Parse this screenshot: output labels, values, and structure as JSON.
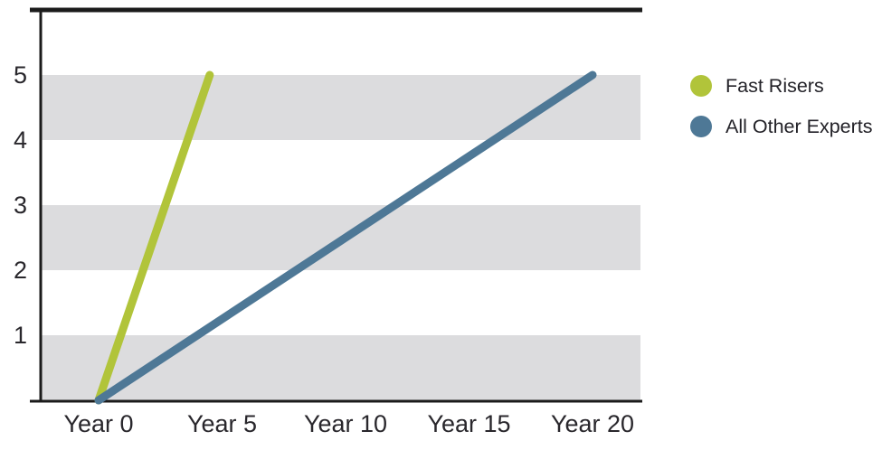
{
  "chart_data": {
    "type": "line",
    "title": "",
    "xlabel": "",
    "ylabel": "",
    "xlim": [
      0,
      20
    ],
    "ylim": [
      0,
      6
    ],
    "grid": "alternating-horizontal-bands",
    "gridbands_y": [
      [
        0,
        1
      ],
      [
        2,
        3
      ],
      [
        4,
        5
      ]
    ],
    "y_ticks": [
      1,
      2,
      3,
      4,
      5
    ],
    "x_ticks": [
      {
        "year": 0,
        "label": "Year 0"
      },
      {
        "year": 5,
        "label": "Year 5"
      },
      {
        "year": 10,
        "label": "Year 10"
      },
      {
        "year": 15,
        "label": "Year 15"
      },
      {
        "year": 20,
        "label": "Year 20"
      }
    ],
    "series": [
      {
        "name": "Fast Risers",
        "color": "#b1c43a",
        "points": [
          [
            0,
            0
          ],
          [
            4.5,
            5
          ]
        ]
      },
      {
        "name": "All Other Experts",
        "color": "#4e7896",
        "points": [
          [
            0,
            0
          ],
          [
            20,
            5
          ]
        ]
      }
    ],
    "legend_position": "right"
  },
  "colors": {
    "band": "#dcdcde",
    "axis": "#1b1b1b",
    "text": "#29272c",
    "background": "#ffffff"
  }
}
